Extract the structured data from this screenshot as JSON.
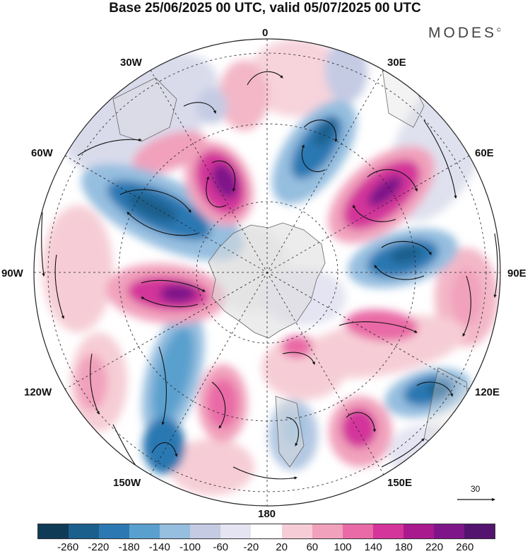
{
  "header": {
    "title": "Base 25/06/2025 00 UTC, valid 05/07/2025 00 UTC",
    "brand": "MODES"
  },
  "map": {
    "projection": "south polar stereographic",
    "longitude_labels": {
      "top": "0",
      "top_right": "30E",
      "upper_right": "60E",
      "right": "90E",
      "lower_right": "120E",
      "bottom_right": "150E",
      "bottom": "180",
      "bottom_left": "150W",
      "lower_left": "120W",
      "left": "90W",
      "upper_left": "60W",
      "top_left": "30W"
    },
    "reference_vector": "30",
    "colors": {
      "neg_strong": "#1f5f8f",
      "neg_mid": "#4a97c8",
      "neg_weak": "#bcc6de",
      "pos_weak": "#f5c3cf",
      "pos_mid": "#e26aa6",
      "pos_strong": "#8a1a82"
    }
  },
  "colorbar": {
    "labels": [
      "-260",
      "-220",
      "-180",
      "-140",
      "-100",
      "-60",
      "-20",
      "20",
      "60",
      "100",
      "140",
      "180",
      "220",
      "260"
    ],
    "colors": [
      "#0f3b57",
      "#1b5f8c",
      "#2c78b2",
      "#5aa0ce",
      "#95bedf",
      "#c4cbe3",
      "#e4e4f2",
      "#ffffff",
      "#f6cdd6",
      "#f1a1bc",
      "#e96aa6",
      "#d3359a",
      "#a91a8f",
      "#7e168a",
      "#54136f"
    ]
  }
}
